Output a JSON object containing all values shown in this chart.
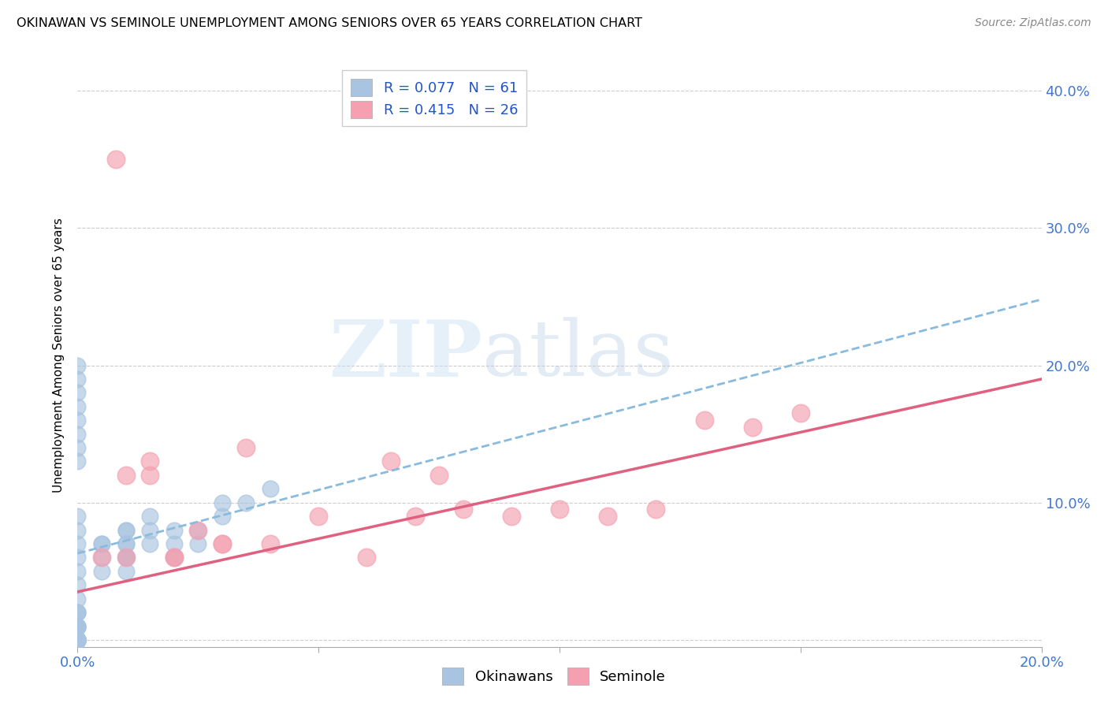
{
  "title": "OKINAWAN VS SEMINOLE UNEMPLOYMENT AMONG SENIORS OVER 65 YEARS CORRELATION CHART",
  "source": "Source: ZipAtlas.com",
  "ylabel": "Unemployment Among Seniors over 65 years",
  "xlim": [
    0.0,
    0.2
  ],
  "ylim": [
    -0.005,
    0.42
  ],
  "okinawan_R": 0.077,
  "okinawan_N": 61,
  "seminole_R": 0.415,
  "seminole_N": 26,
  "okinawan_color": "#a8c4e0",
  "okinawan_edge_color": "#7aafd4",
  "seminole_color": "#f4a0b0",
  "seminole_edge_color": "#e07090",
  "okinawan_line_color": "#88bbdd",
  "seminole_line_color": "#e06080",
  "background_color": "#ffffff",
  "watermark_zip": "ZIP",
  "watermark_atlas": "atlas",
  "okinawan_x": [
    0.0,
    0.0,
    0.0,
    0.0,
    0.0,
    0.0,
    0.0,
    0.0,
    0.0,
    0.0,
    0.0,
    0.0,
    0.0,
    0.0,
    0.0,
    0.0,
    0.0,
    0.0,
    0.0,
    0.0,
    0.0,
    0.0,
    0.0,
    0.0,
    0.0,
    0.0,
    0.0,
    0.0,
    0.005,
    0.005,
    0.005,
    0.01,
    0.01,
    0.01,
    0.01,
    0.01,
    0.015,
    0.015,
    0.015,
    0.02,
    0.02,
    0.02,
    0.025,
    0.025,
    0.03,
    0.03,
    0.035,
    0.04,
    0.0,
    0.0,
    0.0,
    0.0,
    0.0,
    0.0,
    0.0,
    0.0,
    0.005,
    0.01,
    0.01,
    0.01,
    0.0
  ],
  "okinawan_y": [
    0.0,
    0.0,
    0.0,
    0.0,
    0.0,
    0.0,
    0.0,
    0.0,
    0.01,
    0.01,
    0.01,
    0.01,
    0.02,
    0.02,
    0.02,
    0.03,
    0.04,
    0.05,
    0.06,
    0.07,
    0.08,
    0.09,
    0.0,
    0.0,
    0.0,
    0.0,
    0.0,
    0.0,
    0.05,
    0.06,
    0.07,
    0.05,
    0.06,
    0.07,
    0.08,
    0.06,
    0.07,
    0.08,
    0.09,
    0.07,
    0.08,
    0.06,
    0.08,
    0.07,
    0.09,
    0.1,
    0.1,
    0.11,
    0.19,
    0.2,
    0.14,
    0.15,
    0.16,
    0.17,
    0.18,
    0.13,
    0.07,
    0.06,
    0.07,
    0.08,
    0.01
  ],
  "seminole_x": [
    0.008,
    0.01,
    0.015,
    0.02,
    0.025,
    0.03,
    0.035,
    0.04,
    0.05,
    0.06,
    0.065,
    0.07,
    0.075,
    0.08,
    0.09,
    0.1,
    0.11,
    0.12,
    0.13,
    0.14,
    0.15,
    0.01,
    0.015,
    0.02,
    0.03,
    0.005
  ],
  "seminole_y": [
    0.35,
    0.12,
    0.13,
    0.06,
    0.08,
    0.07,
    0.14,
    0.07,
    0.09,
    0.06,
    0.13,
    0.09,
    0.12,
    0.095,
    0.09,
    0.095,
    0.09,
    0.095,
    0.16,
    0.155,
    0.165,
    0.06,
    0.12,
    0.06,
    0.07,
    0.06
  ],
  "ok_line_x0": 0.0,
  "ok_line_x1": 0.2,
  "ok_line_y0": 0.063,
  "ok_line_y1": 0.248,
  "sem_line_x0": 0.0,
  "sem_line_x1": 0.2,
  "sem_line_y0": 0.035,
  "sem_line_y1": 0.19
}
